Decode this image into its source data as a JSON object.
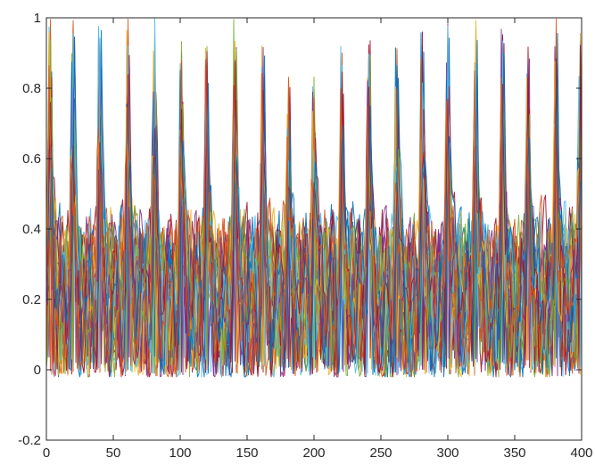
{
  "chart_data": {
    "type": "line",
    "title": "",
    "xlabel": "",
    "ylabel": "",
    "xlim": [
      0,
      400
    ],
    "ylim": [
      -0.2,
      1
    ],
    "x_ticks": [
      "0",
      "50",
      "100",
      "150",
      "200",
      "250",
      "300",
      "350",
      "400"
    ],
    "y_ticks": [
      "-0.2",
      "0",
      "0.2",
      "0.4",
      "0.6",
      "0.8",
      "1"
    ],
    "grid": false,
    "legend": "none",
    "series_count": 30,
    "samples_per_series": 401,
    "colors": [
      "#0072BD",
      "#D95319",
      "#EDB120",
      "#7E2F8E",
      "#77AC30",
      "#4DBEEE",
      "#A2142F"
    ],
    "peak_positions": [
      3,
      20,
      40,
      61,
      81,
      101,
      120,
      141,
      162,
      181,
      200,
      221,
      241,
      262,
      281,
      300,
      321,
      341,
      360,
      381,
      399
    ],
    "peak_values": [
      1.0,
      1.0,
      0.98,
      1.0,
      1.0,
      0.94,
      0.92,
      1.0,
      0.92,
      0.84,
      0.84,
      0.93,
      0.96,
      0.93,
      0.96,
      1.0,
      1.0,
      0.97,
      0.93,
      1.0,
      0.98
    ],
    "baseline_min": -0.02,
    "typical_range": [
      0.0,
      0.6
    ]
  }
}
